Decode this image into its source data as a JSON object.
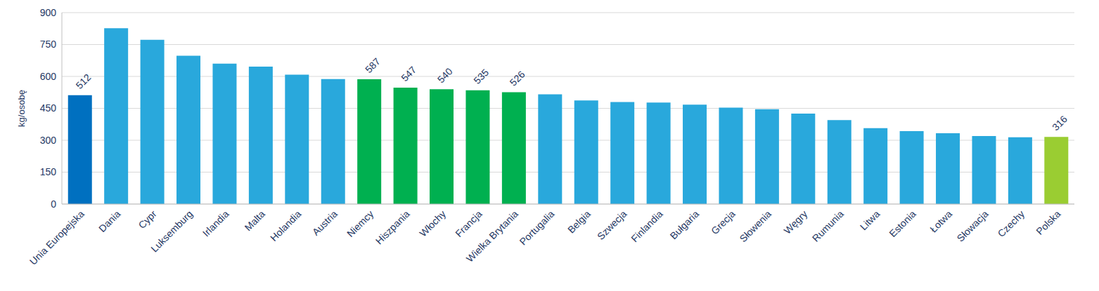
{
  "chart_data": {
    "type": "bar",
    "y_label": "kg/osobę",
    "categories": [
      "Unia Europejska",
      "Dania",
      "Cypr",
      "Luksemburg",
      "Irlandia",
      "Malta",
      "Holandia",
      "Austria",
      "Niemcy",
      "Hiszpania",
      "Włochy",
      "Francja",
      "Wielka Brytania",
      "Portugalia",
      "Belgia",
      "Szwecja",
      "Finlandia",
      "Bułgaria",
      "Grecja",
      "Słowenia",
      "Węgry",
      "Rumunia",
      "Litwa",
      "Estonia",
      "Łotwa",
      "Słowacja",
      "Czechy",
      "Polska"
    ],
    "values": [
      512,
      827,
      772,
      697,
      660,
      646,
      608,
      588,
      587,
      547,
      540,
      535,
      526,
      516,
      487,
      480,
      477,
      467,
      453,
      446,
      425,
      395,
      357,
      343,
      333,
      320,
      314,
      316
    ],
    "value_labels": [
      "512",
      null,
      null,
      null,
      null,
      null,
      null,
      null,
      "587",
      "547",
      "540",
      "535",
      "526",
      null,
      null,
      null,
      null,
      null,
      null,
      null,
      null,
      null,
      null,
      null,
      null,
      null,
      null,
      "316"
    ],
    "data_labels": true,
    "colors": [
      "#0070c0",
      "#29a8dc",
      "#29a8dc",
      "#29a8dc",
      "#29a8dc",
      "#29a8dc",
      "#29a8dc",
      "#29a8dc",
      "#00b050",
      "#00b050",
      "#00b050",
      "#00b050",
      "#00b050",
      "#29a8dc",
      "#29a8dc",
      "#29a8dc",
      "#29a8dc",
      "#29a8dc",
      "#29a8dc",
      "#29a8dc",
      "#29a8dc",
      "#29a8dc",
      "#29a8dc",
      "#29a8dc",
      "#29a8dc",
      "#29a8dc",
      "#29a8dc",
      "#9acd32"
    ],
    "ylim": [
      0,
      900
    ],
    "yticks": [
      0,
      150,
      300,
      450,
      600,
      750,
      900
    ],
    "grid": true
  }
}
